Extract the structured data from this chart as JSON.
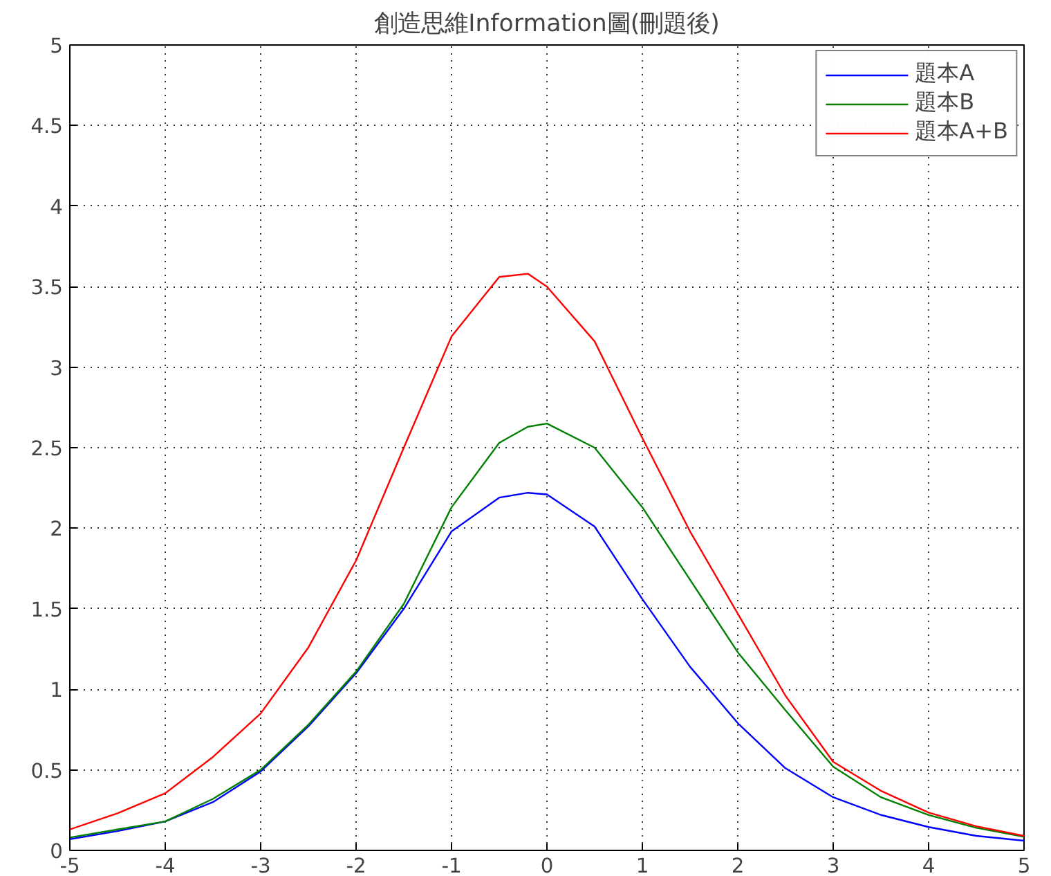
{
  "chart_data": {
    "type": "line",
    "title": "創造思維Information圖(刪題後)",
    "x": [
      -5,
      -4.5,
      -4,
      -3.5,
      -3,
      -2.5,
      -2,
      -1.5,
      -1,
      -0.5,
      -0.2,
      0,
      0.5,
      1,
      1.5,
      2,
      2.5,
      3,
      3.5,
      4,
      4.5,
      5
    ],
    "series": [
      {
        "name": "題本A",
        "color": "#0000ff",
        "values": [
          0.07,
          0.12,
          0.18,
          0.3,
          0.49,
          0.77,
          1.1,
          1.5,
          1.98,
          2.19,
          2.22,
          2.21,
          2.01,
          1.56,
          1.14,
          0.79,
          0.51,
          0.33,
          0.22,
          0.145,
          0.09,
          0.06
        ]
      },
      {
        "name": "題本B",
        "color": "#008000",
        "values": [
          0.08,
          0.13,
          0.18,
          0.32,
          0.5,
          0.78,
          1.11,
          1.53,
          2.13,
          2.53,
          2.63,
          2.65,
          2.5,
          2.13,
          1.68,
          1.23,
          0.87,
          0.52,
          0.33,
          0.22,
          0.14,
          0.085
        ]
      },
      {
        "name": "題本A+B",
        "color": "#ff0000",
        "values": [
          0.13,
          0.23,
          0.355,
          0.58,
          0.85,
          1.26,
          1.8,
          2.5,
          3.19,
          3.56,
          3.58,
          3.5,
          3.16,
          2.56,
          1.98,
          1.47,
          0.96,
          0.55,
          0.37,
          0.235,
          0.15,
          0.09
        ]
      }
    ],
    "xlim": [
      -5,
      5
    ],
    "xticks": [
      -5,
      -4,
      -3,
      -2,
      -1,
      0,
      1,
      2,
      3,
      4,
      5
    ],
    "ylim": [
      0,
      5
    ],
    "yticks": [
      0,
      0.5,
      1,
      1.5,
      2,
      2.5,
      3,
      3.5,
      4,
      4.5,
      5
    ],
    "grid": true,
    "legend": "top right",
    "line_style": "solid"
  }
}
